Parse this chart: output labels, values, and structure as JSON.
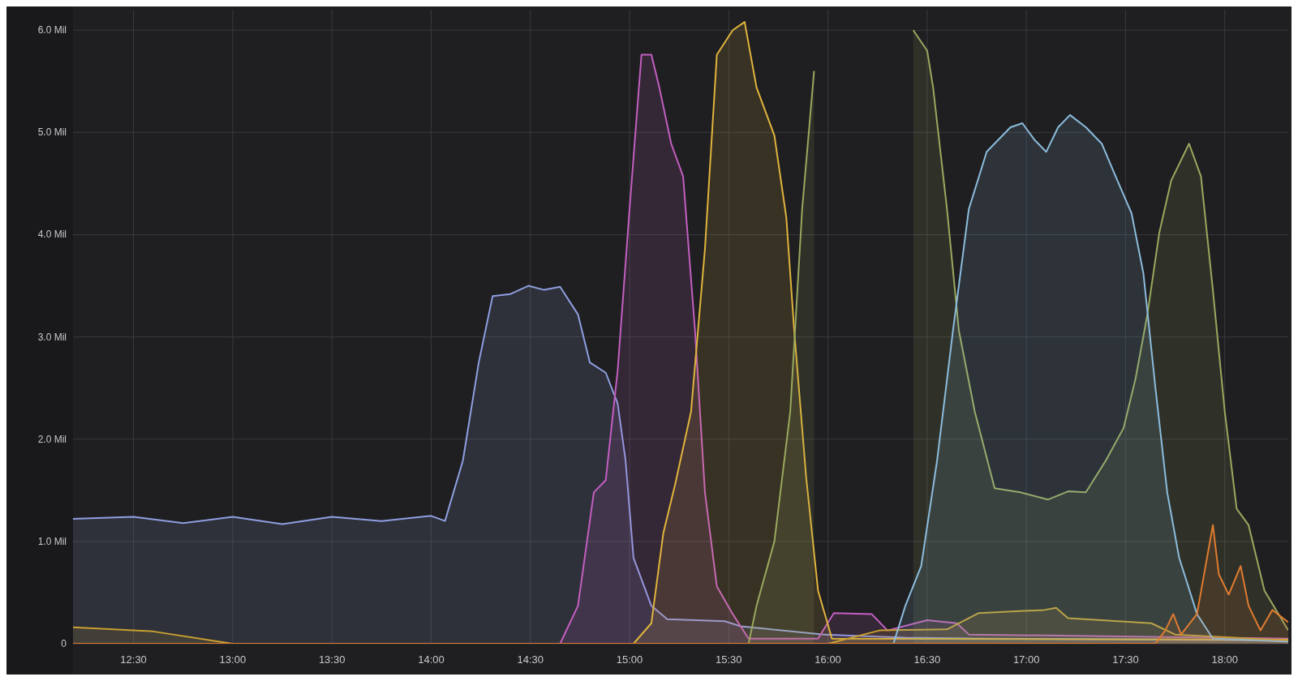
{
  "chart_data": {
    "type": "area",
    "xlim": [
      12.195,
      18.32
    ],
    "ylim": [
      0,
      6.2
    ],
    "xticks": [
      {
        "value": 12.5,
        "label": "12:30"
      },
      {
        "value": 13,
        "label": "13:00"
      },
      {
        "value": 13.5,
        "label": "13:30"
      },
      {
        "value": 14,
        "label": "14:00"
      },
      {
        "value": 14.5,
        "label": "14:30"
      },
      {
        "value": 15,
        "label": "15:00"
      },
      {
        "value": 15.5,
        "label": "15:30"
      },
      {
        "value": 16,
        "label": "16:00"
      },
      {
        "value": 16.5,
        "label": "16:30"
      },
      {
        "value": 17,
        "label": "17:00"
      },
      {
        "value": 17.5,
        "label": "17:30"
      },
      {
        "value": 18,
        "label": "18:00"
      }
    ],
    "yticks": [
      0,
      {
        "value": 1,
        "label": "1.0 Mil"
      },
      {
        "value": 2,
        "label": "2.0 Mil"
      },
      {
        "value": 3,
        "label": "3.0 Mil"
      },
      {
        "value": 4,
        "label": "4.0 Mil"
      },
      {
        "value": 5,
        "label": "5.0 Mil"
      },
      {
        "value": 6,
        "label": "6.0 Mil"
      }
    ],
    "grid": true,
    "series": [
      {
        "color": "#8f9fe0",
        "x": [
          12.195,
          12.5,
          12.75,
          13,
          13.25,
          13.5,
          13.75,
          14,
          14.07,
          14.16,
          14.24,
          14.31,
          14.4,
          14.49,
          14.57,
          14.65,
          14.74,
          14.8,
          14.88,
          14.94,
          14.98,
          15.02,
          15.11,
          15.19,
          15.48,
          15.56,
          15.98,
          16.39,
          16.8,
          18.32
        ],
        "values": [
          1.22,
          1.24,
          1.18,
          1.24,
          1.17,
          1.24,
          1.2,
          1.25,
          1.2,
          1.79,
          2.75,
          3.4,
          3.42,
          3.5,
          3.46,
          3.49,
          3.22,
          2.75,
          2.65,
          2.35,
          1.79,
          0.84,
          0.37,
          0.24,
          0.22,
          0.17,
          0.09,
          0.06,
          0.05,
          0.03
        ]
      },
      {
        "color": "#c35fc0",
        "x": [
          12.195,
          14.65,
          14.74,
          14.82,
          14.88,
          14.94,
          15.0,
          15.06,
          15.11,
          15.15,
          15.21,
          15.27,
          15.33,
          15.38,
          15.44,
          15.52,
          15.6,
          15.95,
          16.03,
          16.22,
          16.3,
          16.5,
          16.65,
          16.71,
          18.32
        ],
        "values": [
          0,
          0,
          0.37,
          1.48,
          1.6,
          2.67,
          4.25,
          5.76,
          5.76,
          5.44,
          4.89,
          4.57,
          3.06,
          1.48,
          0.56,
          0.29,
          0.05,
          0.05,
          0.3,
          0.29,
          0.13,
          0.23,
          0.2,
          0.09,
          0.05
        ]
      },
      {
        "color": "#e0b43c",
        "x": [
          12.195,
          15.02,
          15.11,
          15.17,
          15.23,
          15.31,
          15.38,
          15.44,
          15.52,
          15.58,
          15.64,
          15.73,
          15.79,
          15.83,
          15.89,
          15.95,
          16.02,
          18.32
        ],
        "values": [
          0,
          0,
          0.2,
          1.08,
          1.56,
          2.27,
          3.86,
          5.76,
          6.0,
          6.08,
          5.44,
          4.97,
          4.17,
          3.06,
          1.63,
          0.52,
          0.05,
          0.04
        ]
      },
      {
        "color": "#c8a030",
        "x": [
          12.195,
          12.6,
          13.0,
          16.0,
          16.26,
          16.6,
          16.76,
          17.09,
          17.15,
          17.21,
          17.63,
          17.75,
          18.32
        ],
        "values": [
          0.16,
          0.12,
          0,
          0,
          0.13,
          0.14,
          0.3,
          0.33,
          0.35,
          0.25,
          0.2,
          0.09,
          0.03
        ]
      },
      {
        "color": "#9aa85e",
        "x": [
          12.195,
          15.6,
          15.64,
          15.73,
          15.81,
          15.87,
          15.93,
          15.98,
          16.39,
          16.43,
          16.5,
          16.53,
          16.6,
          16.66,
          16.74,
          16.84,
          16.97,
          17.11,
          17.21,
          17.3,
          17.4,
          17.49,
          17.55,
          17.61,
          17.67,
          17.73,
          17.82,
          17.88,
          17.94,
          18.0,
          18.06,
          18.12,
          18.2,
          18.32
        ],
        "values": [
          0,
          0,
          0.37,
          1.0,
          2.27,
          4.25,
          5.6,
          null,
          null,
          6.0,
          5.8,
          5.44,
          4.25,
          3.06,
          2.27,
          1.52,
          1.48,
          1.41,
          1.49,
          1.48,
          1.79,
          2.11,
          2.59,
          3.22,
          4.02,
          4.53,
          4.89,
          4.57,
          3.46,
          2.27,
          1.32,
          1.16,
          0.52,
          0.13
        ]
      },
      {
        "color": "#8cbcdc",
        "x": [
          12.195,
          16.33,
          16.39,
          16.47,
          16.55,
          16.63,
          16.71,
          16.8,
          16.92,
          16.98,
          17.04,
          17.1,
          17.16,
          17.22,
          17.3,
          17.38,
          17.45,
          17.53,
          17.59,
          17.65,
          17.71,
          17.77,
          17.86,
          17.94,
          18.32
        ],
        "values": [
          0,
          0,
          0.37,
          0.76,
          1.79,
          3.06,
          4.25,
          4.81,
          5.05,
          5.09,
          4.93,
          4.81,
          5.05,
          5.17,
          5.05,
          4.89,
          4.57,
          4.21,
          3.62,
          2.51,
          1.48,
          0.84,
          0.29,
          0.05,
          0.02
        ]
      },
      {
        "color": "#e07c30",
        "x": [
          12.195,
          17.65,
          17.7,
          17.74,
          17.78,
          17.86,
          17.94,
          17.97,
          18.02,
          18.08,
          18.12,
          18.18,
          18.24,
          18.32
        ],
        "values": [
          0,
          0,
          0.13,
          0.29,
          0.09,
          0.29,
          1.16,
          0.68,
          0.48,
          0.76,
          0.37,
          0.13,
          0.33,
          0.21
        ]
      }
    ]
  }
}
